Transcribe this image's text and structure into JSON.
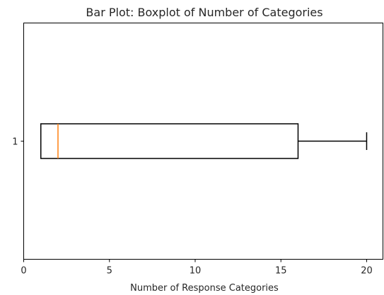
{
  "chart_data": {
    "type": "boxplot",
    "orientation": "horizontal",
    "title": "Bar Plot: Boxplot of Number of Categories",
    "xlabel": "Number of Response Categories",
    "ylabel": "",
    "xlim": [
      0,
      20.95
    ],
    "x_ticks": [
      0,
      5,
      10,
      15,
      20
    ],
    "y_ticks": [
      "1"
    ],
    "grid": false,
    "boxes": [
      {
        "label": "1",
        "whisker_low": 1,
        "q1": 1,
        "median": 2,
        "q3": 16,
        "whisker_high": 20
      }
    ],
    "colors": {
      "box": "#000000",
      "median": "#ff7f0e",
      "axes": "#000000"
    }
  }
}
